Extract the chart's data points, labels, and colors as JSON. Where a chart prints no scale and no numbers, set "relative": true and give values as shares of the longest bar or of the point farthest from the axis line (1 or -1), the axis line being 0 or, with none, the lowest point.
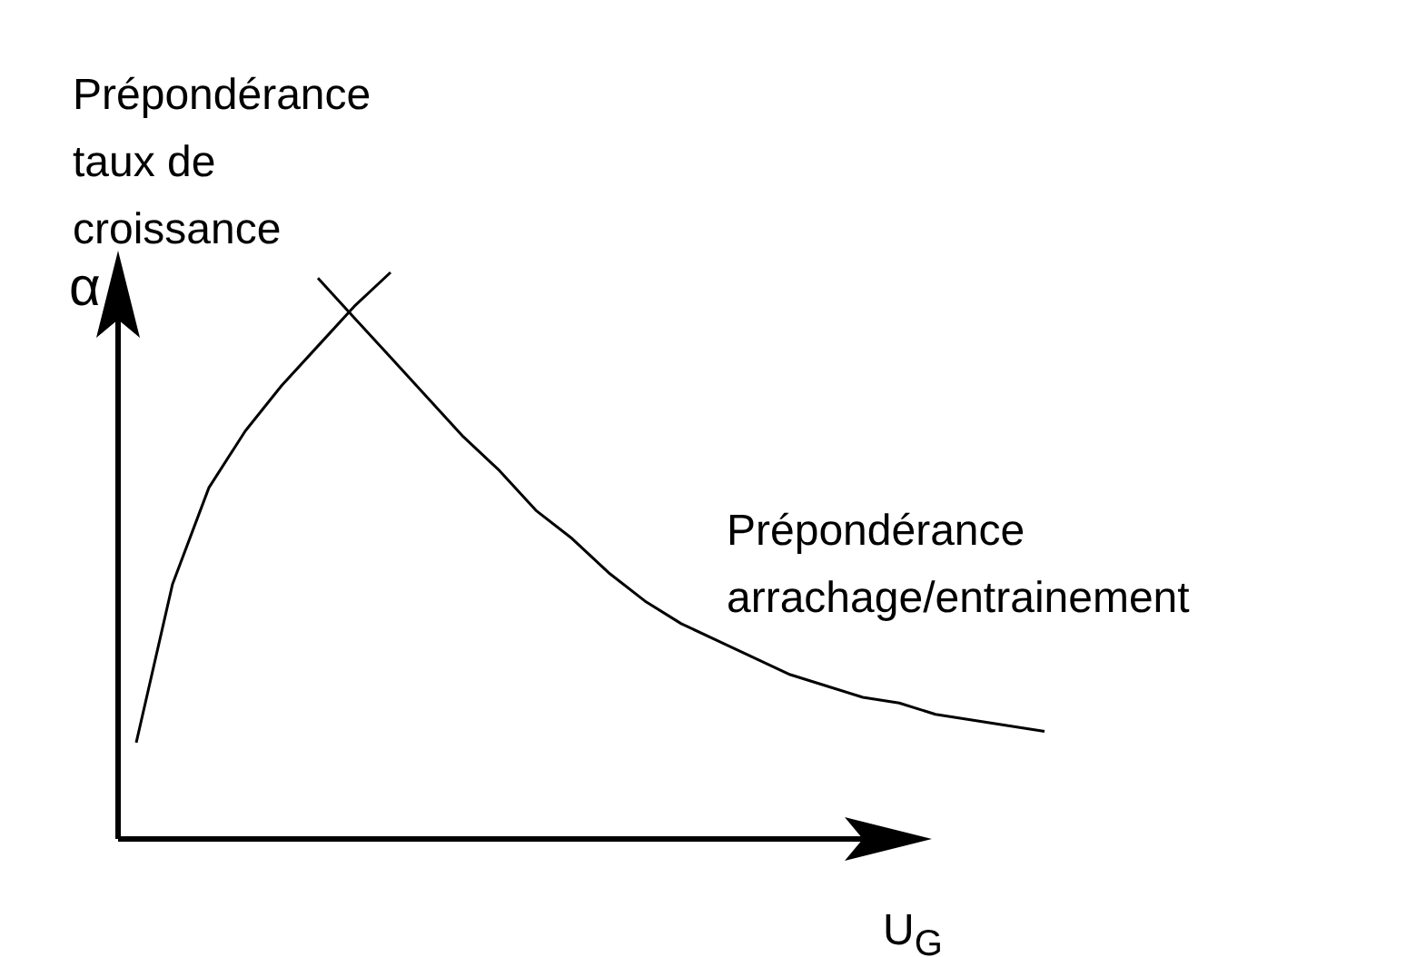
{
  "chart_data": {
    "type": "line",
    "relative": true,
    "xlabel": "U$_{G}$",
    "ylabel": "α",
    "tick_labels": false,
    "categories": [
      null,
      null,
      null,
      null,
      null,
      null,
      null,
      null,
      null,
      null,
      null,
      null,
      null,
      null,
      null,
      null,
      null,
      null,
      null,
      null,
      null,
      null,
      null,
      null,
      null,
      null
    ],
    "series": [
      {
        "name": "Prépondérance taux de croissance",
        "color": "#000000",
        "values": [
          0.17,
          0.45,
          0.62,
          0.72,
          0.8,
          0.87,
          0.94,
          1.0,
          null,
          null,
          null,
          null,
          null,
          null,
          null,
          null,
          null,
          null,
          null,
          null,
          null,
          null,
          null,
          null,
          null,
          null
        ]
      },
      {
        "name": "Prépondérance arrachage/entrainement",
        "color": "#000000",
        "values": [
          null,
          null,
          null,
          null,
          null,
          0.99,
          0.92,
          0.85,
          0.78,
          0.71,
          0.65,
          0.58,
          0.53,
          0.47,
          0.42,
          0.38,
          0.35,
          0.32,
          0.29,
          0.27,
          0.25,
          0.24,
          0.22,
          0.21,
          0.2,
          0.19
        ]
      }
    ]
  }
}
